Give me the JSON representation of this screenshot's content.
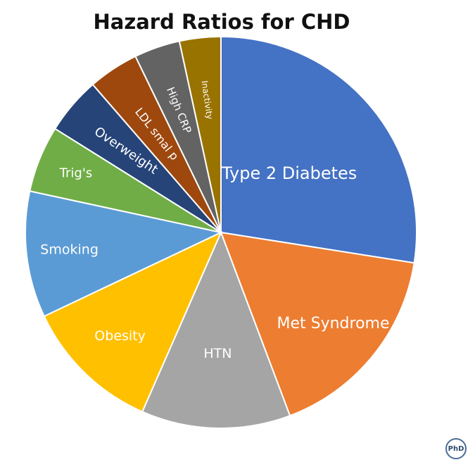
{
  "chart_data": {
    "type": "pie",
    "title": "Hazard Ratios for CHD",
    "start_angle_deg": 0,
    "direction": "clockwise",
    "slices": [
      {
        "label": "Type 2 Diabetes",
        "value": 29.0,
        "color": "#4472c4"
      },
      {
        "label": "Met Syndrome",
        "value": 17.7,
        "color": "#ed7d31"
      },
      {
        "label": "HTN",
        "value": 13.0,
        "color": "#a5a5a5"
      },
      {
        "label": "Obesity",
        "value": 12.0,
        "color": "#ffc000"
      },
      {
        "label": "Smoking",
        "value": 11.0,
        "color": "#5b9bd5"
      },
      {
        "label": "Trig's",
        "value": 5.8,
        "color": "#70ad47"
      },
      {
        "label": "Overweight",
        "value": 5.0,
        "color": "#264478"
      },
      {
        "label": "LDL smal p",
        "value": 4.4,
        "color": "#9e480e"
      },
      {
        "label": "High CRP",
        "value": 4.0,
        "color": "#636363"
      },
      {
        "label": "Inactivity",
        "value": 3.6,
        "color": "#997300"
      }
    ]
  },
  "watermark": {
    "text": "PhD"
  }
}
